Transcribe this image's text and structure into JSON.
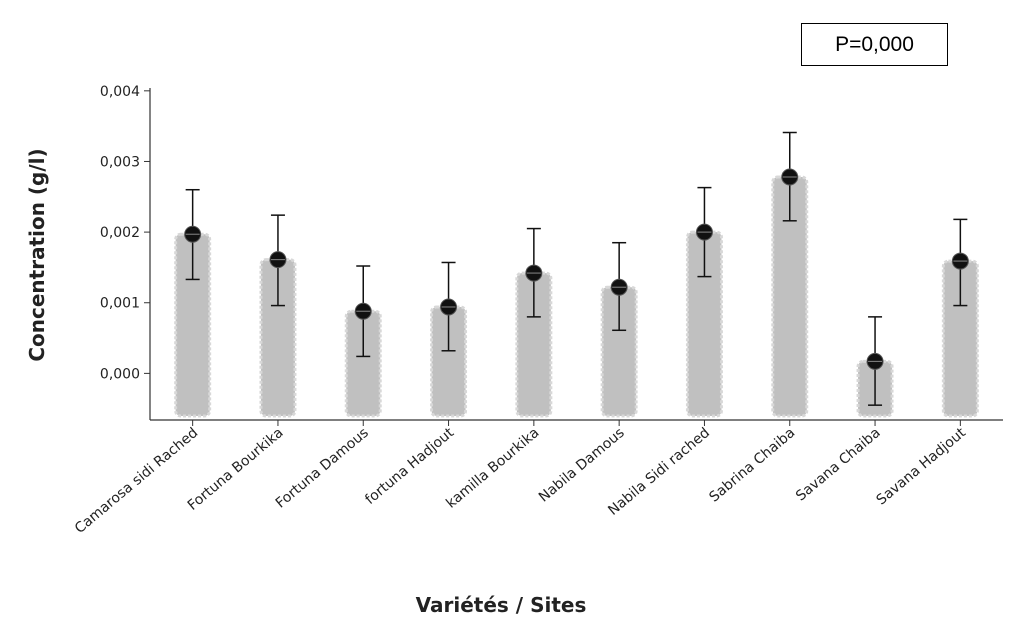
{
  "annotation": "P=0,000",
  "chart_data": {
    "type": "bar",
    "xlabel": "Variétés / Sites",
    "ylabel": "Concentration (g/l)",
    "ylim": [
      -0.00066,
      0.00404
    ],
    "yticks": [
      0.0,
      0.001,
      0.002,
      0.003,
      0.004
    ],
    "ytick_labels": [
      "0,000",
      "0,001",
      "0,002",
      "0,003",
      "0,004"
    ],
    "grid": false,
    "categories": [
      "Camarosa sidi Rached",
      "Fortuna Bourkika",
      "Fortuna Damous",
      "fortuna Hadjout",
      "kamilla Bourkika",
      "Nabila Damous",
      "Nabila Sidi rached",
      "Sabrina Chaiba",
      "Savana Chaiba",
      "Savana Hadjout"
    ],
    "values": [
      0.00197,
      0.00161,
      0.00088,
      0.00094,
      0.00142,
      0.00122,
      0.002,
      0.00278,
      0.00017,
      0.00159
    ],
    "error_upper": [
      0.0026,
      0.00224,
      0.00152,
      0.00157,
      0.00205,
      0.00185,
      0.00263,
      0.00341,
      0.0008,
      0.00218
    ],
    "error_lower": [
      0.00133,
      0.00096,
      0.00024,
      0.00032,
      0.0008,
      0.00061,
      0.00137,
      0.00216,
      -0.00045,
      0.00096
    ],
    "bar_color": "#c0c0c0",
    "bar_outline_color": "#d8d8d8",
    "marker_color": "#111111"
  }
}
